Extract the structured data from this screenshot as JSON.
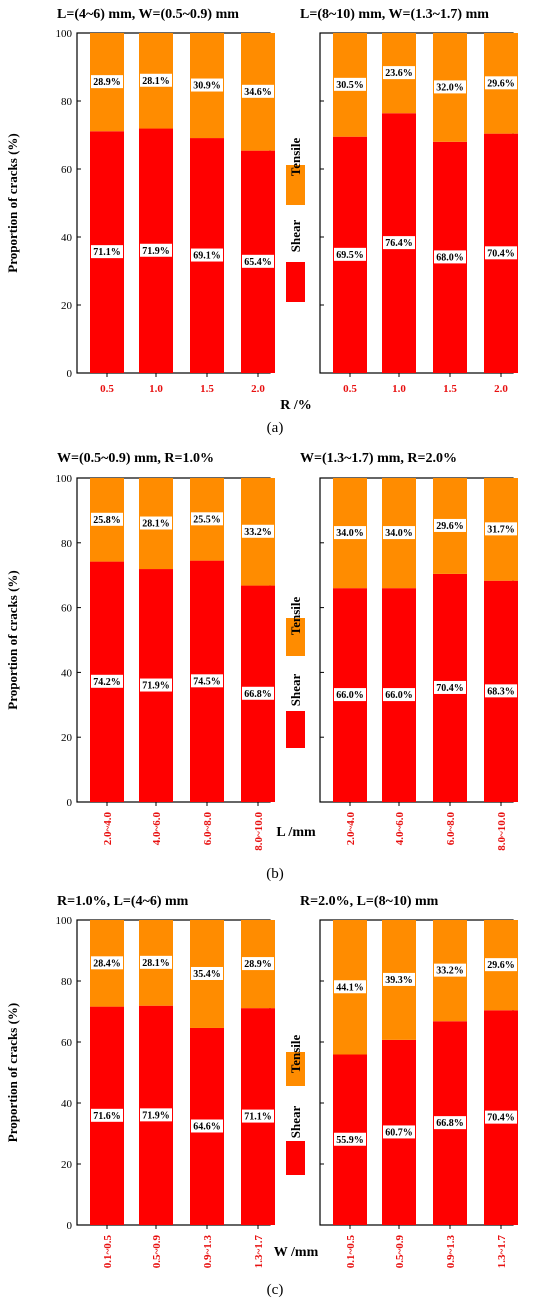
{
  "colors": {
    "shear": "#ff0000",
    "tensile": "#ff8c00",
    "axis": "#000000",
    "tick_label": "#e81010"
  },
  "legend": {
    "tensile_label": "Tensile",
    "shear_label": "Shear"
  },
  "chart_data": [
    {
      "type": "bar",
      "stacked": true,
      "caption": "(a)",
      "xlabel": "R /%",
      "ylabel": "Proportion of  cracks (%)",
      "ylim": [
        0,
        100
      ],
      "yticks": [
        "0",
        "20",
        "40",
        "60",
        "80",
        "100"
      ],
      "panels": [
        {
          "title": "L=(4~6) mm, W=(0.5~0.9) mm",
          "categories": [
            "0.5",
            "1.0",
            "1.5",
            "2.0"
          ],
          "series": [
            {
              "name": "Shear",
              "values": [
                71.1,
                71.9,
                69.1,
                65.4
              ],
              "labels": [
                "71.1%",
                "71.9%",
                "69.1%",
                "65.4%"
              ]
            },
            {
              "name": "Tensile",
              "values": [
                28.9,
                28.1,
                30.9,
                34.6
              ],
              "labels": [
                "28.9%",
                "28.1%",
                "30.9%",
                "34.6%"
              ]
            }
          ]
        },
        {
          "title": "L=(8~10) mm, W=(1.3~1.7) mm",
          "categories": [
            "0.5",
            "1.0",
            "1.5",
            "2.0"
          ],
          "series": [
            {
              "name": "Shear",
              "values": [
                69.5,
                76.4,
                68.0,
                70.4
              ],
              "labels": [
                "69.5%",
                "76.4%",
                "68.0%",
                "70.4%"
              ]
            },
            {
              "name": "Tensile",
              "values": [
                30.5,
                23.6,
                32.0,
                29.6
              ],
              "labels": [
                "30.5%",
                "23.6%",
                "32.0%",
                "29.6%"
              ]
            }
          ]
        }
      ]
    },
    {
      "type": "bar",
      "stacked": true,
      "caption": "(b)",
      "xlabel": "L /mm",
      "ylabel": "Proportion of  cracks (%)",
      "ylim": [
        0,
        100
      ],
      "yticks": [
        "0",
        "20",
        "40",
        "60",
        "80",
        "100"
      ],
      "panels": [
        {
          "title": "W=(0.5~0.9) mm, R=1.0%",
          "categories": [
            "2.0~4.0",
            "4.0~6.0",
            "6.0~8.0",
            "8.0~10.0"
          ],
          "series": [
            {
              "name": "Shear",
              "values": [
                74.2,
                71.9,
                74.5,
                66.8
              ],
              "labels": [
                "74.2%",
                "71.9%",
                "74.5%",
                "66.8%"
              ]
            },
            {
              "name": "Tensile",
              "values": [
                25.8,
                28.1,
                25.5,
                33.2
              ],
              "labels": [
                "25.8%",
                "28.1%",
                "25.5%",
                "33.2%"
              ]
            }
          ]
        },
        {
          "title": "W=(1.3~1.7) mm, R=2.0%",
          "categories": [
            "2.0~4.0",
            "4.0~6.0",
            "6.0~8.0",
            "8.0~10.0"
          ],
          "series": [
            {
              "name": "Shear",
              "values": [
                66.0,
                66.0,
                70.4,
                68.3
              ],
              "labels": [
                "66.0%",
                "66.0%",
                "70.4%",
                "68.3%"
              ]
            },
            {
              "name": "Tensile",
              "values": [
                34.0,
                34.0,
                29.6,
                31.7
              ],
              "labels": [
                "34.0%",
                "34.0%",
                "29.6%",
                "31.7%"
              ]
            }
          ]
        }
      ]
    },
    {
      "type": "bar",
      "stacked": true,
      "caption": "(c)",
      "xlabel": "W /mm",
      "ylabel": "Proportion of  cracks (%)",
      "ylim": [
        0,
        100
      ],
      "yticks": [
        "0",
        "20",
        "40",
        "60",
        "80",
        "100"
      ],
      "panels": [
        {
          "title": "R=1.0%, L=(4~6) mm",
          "categories": [
            "0.1~0.5",
            "0.5~0.9",
            "0.9~1.3",
            "1.3~1.7"
          ],
          "series": [
            {
              "name": "Shear",
              "values": [
                71.6,
                71.9,
                64.6,
                71.1
              ],
              "labels": [
                "71.6%",
                "71.9%",
                "64.6%",
                "71.1%"
              ]
            },
            {
              "name": "Tensile",
              "values": [
                28.4,
                28.1,
                35.4,
                28.9
              ],
              "labels": [
                "28.4%",
                "28.1%",
                "35.4%",
                "28.9%"
              ]
            }
          ]
        },
        {
          "title": "R=2.0%, L=(8~10) mm",
          "categories": [
            "0.1~0.5",
            "0.5~0.9",
            "0.9~1.3",
            "1.3~1.7"
          ],
          "series": [
            {
              "name": "Shear",
              "values": [
                55.9,
                60.7,
                66.8,
                70.4
              ],
              "labels": [
                "55.9%",
                "60.7%",
                "66.8%",
                "70.4%"
              ]
            },
            {
              "name": "Tensile",
              "values": [
                44.1,
                39.3,
                33.2,
                29.6
              ],
              "labels": [
                "44.1%",
                "39.3%",
                "33.2%",
                "29.6%"
              ]
            }
          ]
        }
      ]
    }
  ]
}
